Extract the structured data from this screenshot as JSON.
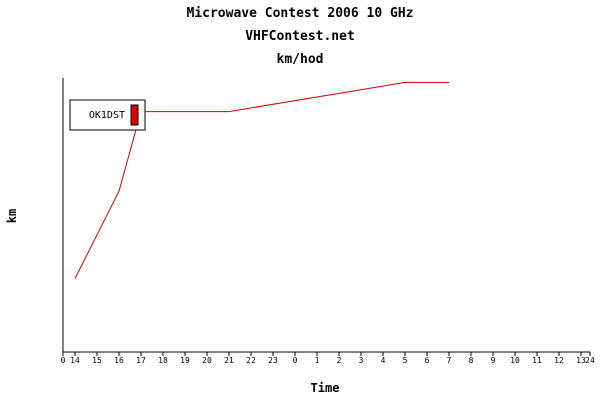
{
  "chart_data": {
    "type": "line",
    "title": "Microwave Contest 2006 10 GHz",
    "subtitle": "VHFContest.net",
    "subtitle2": "km/hod",
    "xlabel": "Time",
    "ylabel": "km",
    "x_ticks": [
      "0",
      "14",
      "15",
      "16",
      "17",
      "18",
      "19",
      "20",
      "21",
      "22",
      "23",
      "0",
      "1",
      "2",
      "3",
      "4",
      "5",
      "6",
      "7",
      "8",
      "9",
      "10",
      "11",
      "12",
      "13",
      "24"
    ],
    "legend": {
      "placement": "top-left",
      "entries": [
        {
          "name": "OK1DST",
          "color": "#dd0000"
        }
      ]
    },
    "grid": false,
    "ylim": [
      0,
      310
    ],
    "series": [
      {
        "name": "OK1DST",
        "color": "#dd0000",
        "x": [
          "14",
          "16",
          "17",
          "21",
          "5",
          "7"
        ],
        "y": [
          83,
          182,
          272,
          272,
          305,
          305
        ]
      }
    ]
  }
}
